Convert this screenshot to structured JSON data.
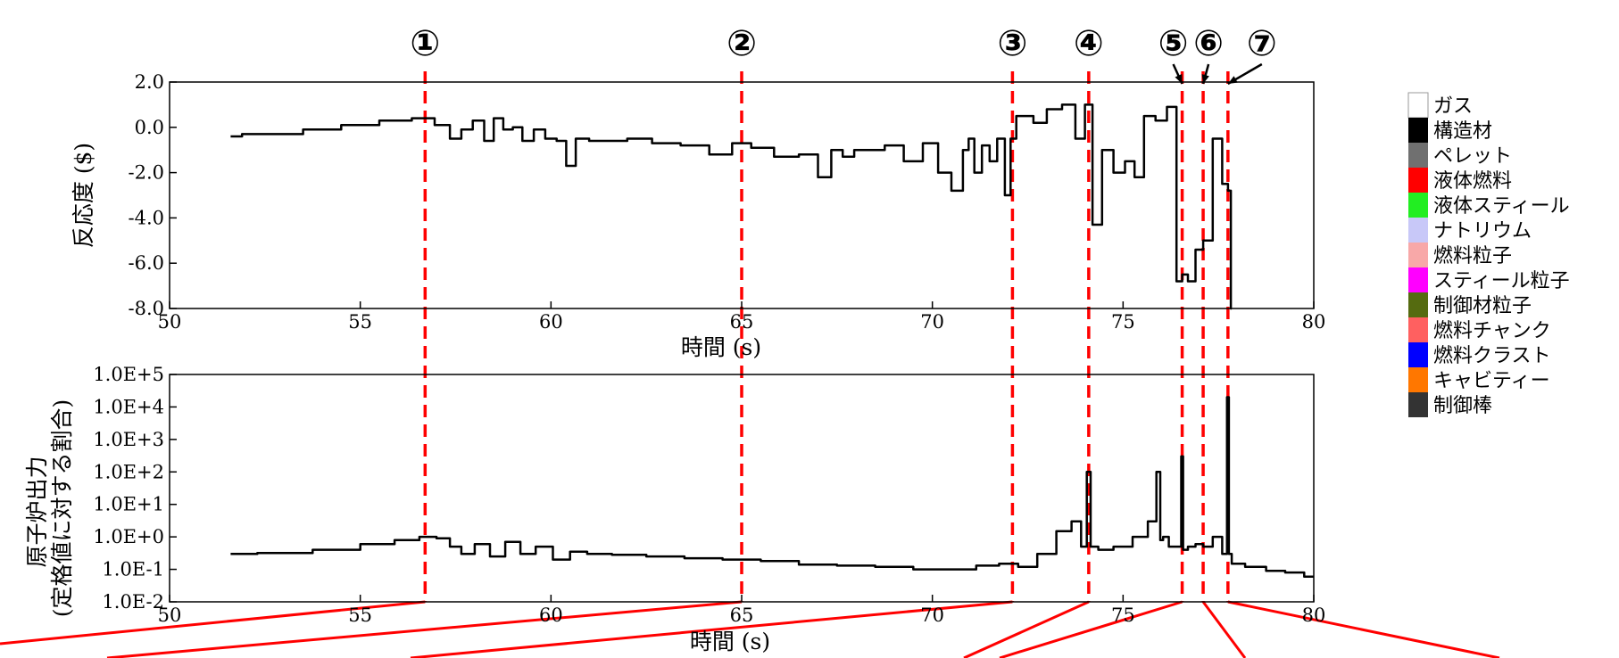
{
  "chart_data": [
    {
      "type": "line",
      "xlabel": "時間 (s)",
      "ylabel": "反応度 ($)",
      "xlim": [
        50,
        80
      ],
      "ylim": [
        -8.0,
        2.0
      ],
      "xticks": [
        "50",
        "55",
        "60",
        "65",
        "70",
        "75",
        "80"
      ],
      "yticks": [
        "2.0",
        "0.0",
        "-2.0",
        "-4.0",
        "-6.0",
        "-8.0"
      ],
      "grid": false,
      "series": [
        {
          "x": [
            51.6,
            52.2,
            53.0,
            54.0,
            55.0,
            56.0,
            56.7,
            57.2,
            57.5,
            57.8,
            58.1,
            58.4,
            58.6,
            58.9,
            59.1,
            59.4,
            59.7,
            60.0,
            60.3,
            60.5,
            60.8,
            61.2,
            61.7,
            62.3,
            63.0,
            63.8,
            64.5,
            65.0,
            65.5,
            66.2,
            66.8,
            67.2,
            67.5,
            67.8,
            68.1,
            68.5,
            69.0,
            69.5,
            70.0,
            70.3,
            70.7,
            70.9,
            71.0,
            71.2,
            71.4,
            71.6,
            71.8,
            72.0,
            72.1,
            72.3,
            72.5,
            72.8,
            73.2,
            73.6,
            73.9,
            74.1,
            74.3,
            74.6,
            74.9,
            75.2,
            75.4,
            75.7,
            76.0,
            76.3,
            76.5,
            76.6,
            76.8,
            77.0,
            77.2,
            77.5,
            77.7,
            77.8,
            77.85
          ],
          "y": [
            -0.4,
            -0.3,
            -0.3,
            -0.1,
            0.1,
            0.3,
            0.4,
            0.1,
            -0.5,
            -0.1,
            0.3,
            -0.6,
            0.4,
            -0.1,
            0.0,
            -0.6,
            -0.1,
            -0.5,
            -0.6,
            -1.7,
            -0.5,
            -0.6,
            -0.6,
            -0.5,
            -0.7,
            -0.8,
            -1.2,
            -0.7,
            -0.9,
            -1.3,
            -1.2,
            -2.2,
            -1.0,
            -1.3,
            -1.0,
            -1.0,
            -0.8,
            -1.5,
            -0.7,
            -2.0,
            -2.8,
            -1.0,
            -0.5,
            -2.0,
            -0.8,
            -1.5,
            -0.5,
            -3.0,
            -0.5,
            0.5,
            0.5,
            0.2,
            0.8,
            1.0,
            -0.5,
            1.0,
            -4.3,
            -1.0,
            -2.0,
            -1.5,
            -2.2,
            0.5,
            0.3,
            0.9,
            -6.8,
            -6.5,
            -6.8,
            -5.4,
            -5.0,
            -0.5,
            -2.5,
            -2.8,
            -8.0
          ]
        }
      ]
    },
    {
      "type": "line",
      "xlabel": "時間 (s)",
      "ylabel": "原子炉出力 (定格値に対する割合)",
      "xlim": [
        50,
        80
      ],
      "ylim": [
        0.01,
        100000
      ],
      "yscale": "log",
      "xticks": [
        "50",
        "55",
        "60",
        "65",
        "70",
        "75",
        "80"
      ],
      "yticks": [
        "1.0E+5",
        "1.0E+4",
        "1.0E+3",
        "1.0E+2",
        "1.0E+1",
        "1.0E+0",
        "1.0E-1",
        "1.0E-2"
      ],
      "grid": false,
      "series": [
        {
          "x": [
            51.6,
            53.0,
            54.5,
            55.5,
            56.3,
            56.8,
            57.2,
            57.5,
            57.8,
            58.2,
            58.6,
            59.0,
            59.4,
            59.8,
            60.3,
            60.7,
            61.2,
            62.0,
            63.0,
            64.0,
            65.0,
            66.0,
            67.0,
            68.0,
            69.0,
            70.0,
            70.8,
            71.5,
            72.0,
            72.5,
            73.0,
            73.5,
            73.8,
            74.0,
            74.1,
            74.2,
            74.5,
            75.0,
            75.5,
            75.8,
            75.95,
            76.0,
            76.1,
            76.3,
            76.5,
            76.55,
            76.6,
            76.8,
            77.0,
            77.2,
            77.5,
            77.7,
            77.75,
            77.8,
            77.9,
            78.5,
            79.0,
            79.5,
            80.0
          ],
          "y": [
            0.3,
            0.32,
            0.4,
            0.6,
            0.8,
            1.0,
            0.9,
            0.5,
            0.3,
            0.6,
            0.25,
            0.7,
            0.3,
            0.5,
            0.2,
            0.35,
            0.3,
            0.28,
            0.25,
            0.22,
            0.2,
            0.18,
            0.14,
            0.13,
            0.12,
            0.1,
            0.1,
            0.13,
            0.15,
            0.12,
            0.3,
            1.5,
            3.0,
            0.5,
            100.0,
            0.5,
            0.4,
            0.5,
            1.0,
            3.0,
            100.0,
            0.8,
            1.0,
            0.5,
            0.5,
            300.0,
            0.4,
            0.5,
            0.6,
            0.5,
            1.0,
            0.3,
            20000.0,
            0.3,
            0.15,
            0.12,
            0.09,
            0.08,
            0.06
          ]
        }
      ]
    }
  ],
  "markers": [
    {
      "label": "①",
      "x": 56.7
    },
    {
      "label": "②",
      "x": 65.0
    },
    {
      "label": "③",
      "x": 72.1
    },
    {
      "label": "④",
      "x": 74.1
    },
    {
      "label": "⑤",
      "x": 76.55
    },
    {
      "label": "⑥",
      "x": 77.1
    },
    {
      "label": "⑦",
      "x": 77.75
    }
  ],
  "legend": {
    "items": [
      {
        "label": "ガス",
        "color": "#ffffff"
      },
      {
        "label": "構造材",
        "color": "#000000"
      },
      {
        "label": "ペレット",
        "color": "#707070"
      },
      {
        "label": "液体燃料",
        "color": "#ff0000"
      },
      {
        "label": "液体スティール",
        "color": "#22ee22"
      },
      {
        "label": "ナトリウム",
        "color": "#c8c8f8"
      },
      {
        "label": "燃料粒子",
        "color": "#f8a8a8"
      },
      {
        "label": "スティール粒子",
        "color": "#ff00ff"
      },
      {
        "label": "制御材粒子",
        "color": "#556b10"
      },
      {
        "label": "燃料チャンク",
        "color": "#ff6060"
      },
      {
        "label": "燃料クラスト",
        "color": "#0000ff"
      },
      {
        "label": "キャビティー",
        "color": "#ff7700"
      },
      {
        "label": "制御棒",
        "color": "#333333"
      }
    ]
  },
  "colors": {
    "line": "#000000",
    "marker_line": "#ff0000",
    "callout_line": "#ff0000"
  }
}
